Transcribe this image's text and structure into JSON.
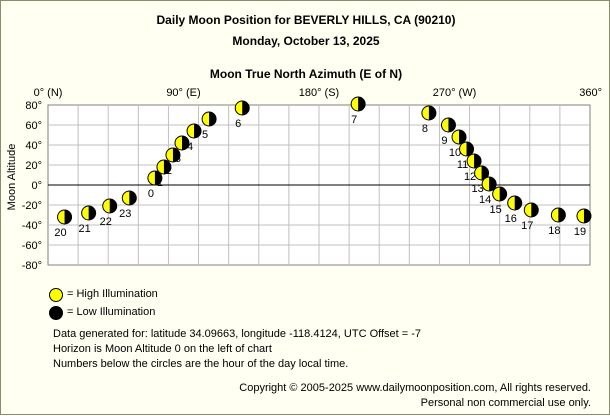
{
  "chart_data": {
    "type": "scatter",
    "title": "Daily Moon Position for BEVERLY HILLS, CA (90210)",
    "subtitle": "Monday, October 13, 2025",
    "xlabel": "Moon True North Azimuth (E of N)",
    "ylabel": "Moon Altitude",
    "xlim": [
      0,
      360
    ],
    "ylim": [
      -80,
      80
    ],
    "x_ticks": [
      {
        "value": 0,
        "label": "0° (N)"
      },
      {
        "value": 90,
        "label": "90° (E)"
      },
      {
        "value": 180,
        "label": "180° (S)"
      },
      {
        "value": 270,
        "label": "270° (W)"
      },
      {
        "value": 360,
        "label": "360°"
      }
    ],
    "y_ticks": [
      {
        "value": 80,
        "label": "80°"
      },
      {
        "value": 60,
        "label": "60°"
      },
      {
        "value": 40,
        "label": "40°"
      },
      {
        "value": 20,
        "label": "20°"
      },
      {
        "value": 0,
        "label": "0°"
      },
      {
        "value": -20,
        "label": "-20°"
      },
      {
        "value": -40,
        "label": "-40°"
      },
      {
        "value": -60,
        "label": "-60°"
      },
      {
        "value": -80,
        "label": "-80°"
      }
    ],
    "grid": true,
    "points": [
      {
        "hour": "0",
        "azimuth": 71,
        "altitude": 7
      },
      {
        "hour": "1",
        "azimuth": 77,
        "altitude": 18
      },
      {
        "hour": "2",
        "azimuth": 83,
        "altitude": 30
      },
      {
        "hour": "3",
        "azimuth": 89,
        "altitude": 42
      },
      {
        "hour": "4",
        "azimuth": 97,
        "altitude": 54
      },
      {
        "hour": "5",
        "azimuth": 107,
        "altitude": 66
      },
      {
        "hour": "6",
        "azimuth": 129,
        "altitude": 77
      },
      {
        "hour": "7",
        "azimuth": 206,
        "altitude": 81
      },
      {
        "hour": "8",
        "azimuth": 253,
        "altitude": 72
      },
      {
        "hour": "9",
        "azimuth": 266,
        "altitude": 60
      },
      {
        "hour": "10",
        "azimuth": 273,
        "altitude": 48
      },
      {
        "hour": "11",
        "azimuth": 278,
        "altitude": 36
      },
      {
        "hour": "12",
        "azimuth": 283,
        "altitude": 24
      },
      {
        "hour": "13",
        "azimuth": 288,
        "altitude": 12
      },
      {
        "hour": "14",
        "azimuth": 293,
        "altitude": 1
      },
      {
        "hour": "15",
        "azimuth": 300,
        "altitude": -9
      },
      {
        "hour": "16",
        "azimuth": 310,
        "altitude": -18
      },
      {
        "hour": "17",
        "azimuth": 321,
        "altitude": -25
      },
      {
        "hour": "18",
        "azimuth": 339,
        "altitude": -30
      },
      {
        "hour": "19",
        "azimuth": 356,
        "altitude": -31
      },
      {
        "hour": "20",
        "azimuth": 11,
        "altitude": -32
      },
      {
        "hour": "21",
        "azimuth": 27,
        "altitude": -28
      },
      {
        "hour": "22",
        "azimuth": 41,
        "altitude": -21
      },
      {
        "hour": "23",
        "azimuth": 54,
        "altitude": -13
      }
    ],
    "colors": {
      "high_illumination": "#ffff00",
      "low_illumination": "#000000",
      "grid": "#c0c0c0",
      "background": "#fffff2",
      "plot_background": "#ffffff"
    }
  },
  "legend": {
    "high_label": "= High Illumination",
    "low_label": "= Low Illumination"
  },
  "info": {
    "line1": "Data generated for: latitude 34.09663, longitude -118.4124, UTC Offset = -7",
    "line2": "Horizon is Moon Altitude 0 on the left of chart",
    "line3": "Numbers below the circles are the hour of the day local time."
  },
  "footer": {
    "copyright": "Copyright © 2005-2025 www.dailymoonposition.com, All rights reserved.",
    "notice": "Personal non commercial use only."
  }
}
